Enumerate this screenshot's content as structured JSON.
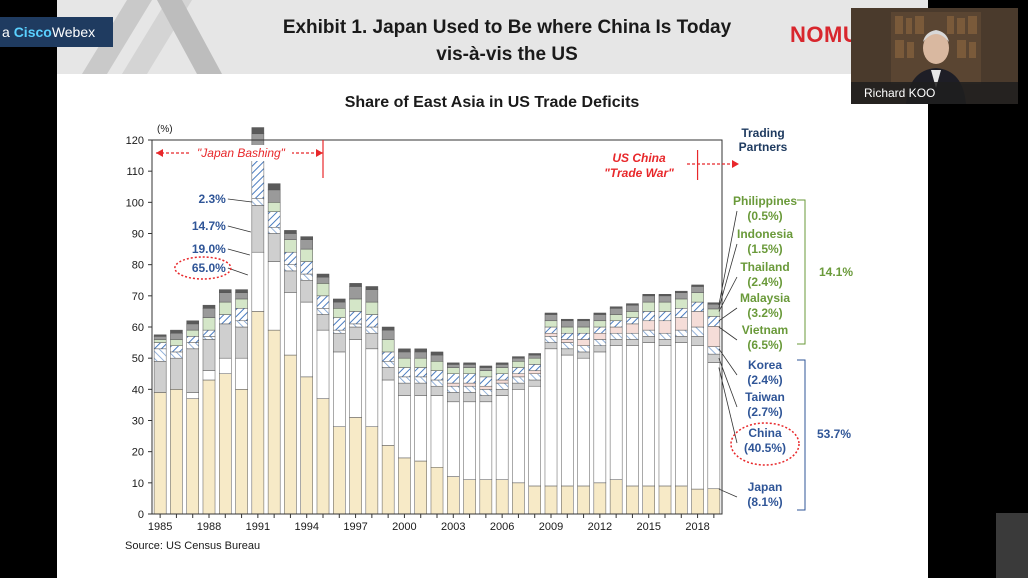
{
  "webex": {
    "prefix": "a ",
    "cisco": "Cisco",
    "webex": "Webex"
  },
  "slide": {
    "title_line1": "Exhibit 1. Japan Used to Be where China Is Today",
    "title_line2": "vis-à-vis the US",
    "brand": "NOMURA",
    "chart_title": "Share of East Asia in US Trade Deficits",
    "source": "Source: US Census Bureau"
  },
  "video": {
    "name": "Richard KOO"
  },
  "colors": {
    "japan": "#f7eac7",
    "china": "#ffffff",
    "taiwan": "#cfcfcf",
    "korea": "#a8a8a8",
    "vietnam": "#f5ddd8",
    "malaysia": "#4a7cc0",
    "thailand": "#d4e6c8",
    "indonesia": "#9a9a9a",
    "philippines": "#5a5a5a",
    "red": "#e8282b",
    "blue": "#2f5597",
    "green": "#6a9a3a"
  },
  "chart_data": {
    "type": "bar",
    "stacked": true,
    "ylabel": "(%)",
    "ylim": [
      0,
      120
    ],
    "yticks": [
      0,
      10,
      20,
      30,
      40,
      50,
      60,
      70,
      80,
      90,
      100,
      110,
      120
    ],
    "xtick_labels": [
      "1985",
      "1988",
      "1991",
      "1994",
      "1997",
      "2000",
      "2003",
      "2006",
      "2009",
      "2012",
      "2015",
      "2018"
    ],
    "x": [
      1985,
      1986,
      1987,
      1988,
      1989,
      1990,
      1991,
      1992,
      1993,
      1994,
      1995,
      1996,
      1997,
      1998,
      1999,
      2000,
      2001,
      2002,
      2003,
      2004,
      2005,
      2006,
      2007,
      2008,
      2009,
      2010,
      2011,
      2012,
      2013,
      2014,
      2015,
      2016,
      2017,
      2018,
      2019
    ],
    "series": [
      {
        "name": "Japan",
        "color": "#f7eac7",
        "values": [
          39,
          40,
          37,
          43,
          45,
          40,
          65,
          59,
          51,
          44,
          37,
          28,
          31,
          28,
          22,
          18,
          17,
          15,
          12,
          11,
          11,
          11,
          10,
          9,
          9,
          9,
          9,
          10,
          11,
          9,
          9,
          9,
          9,
          8,
          8.1
        ]
      },
      {
        "name": "China",
        "color": "#ffffff",
        "values": [
          0,
          0,
          2,
          3,
          5,
          10,
          19,
          22,
          20,
          24,
          22,
          24,
          25,
          25,
          21,
          20,
          21,
          23,
          24,
          25,
          25,
          27,
          30,
          32,
          44,
          42,
          41,
          42,
          43,
          45,
          46,
          45,
          46,
          46,
          40.5
        ]
      },
      {
        "name": "Taiwan",
        "color": "#cfcfcf",
        "values": [
          10,
          10,
          14,
          10,
          11,
          10,
          15,
          9,
          7,
          7,
          5,
          6,
          4,
          5,
          4,
          4,
          4,
          3,
          3,
          3,
          2,
          2,
          2,
          2,
          2,
          2,
          2,
          2,
          2,
          2,
          2,
          2,
          2,
          3,
          2.7
        ]
      },
      {
        "name": "Korea",
        "color": "#a8a8a8",
        "values": [
          4,
          2,
          2,
          1,
          0,
          2,
          2.3,
          2,
          2,
          2,
          2,
          1,
          1,
          2,
          2,
          2,
          2,
          2,
          2,
          2,
          2,
          2,
          2,
          2,
          2,
          2,
          2,
          2,
          2,
          2,
          2,
          2,
          2,
          3,
          2.4
        ]
      },
      {
        "name": "Vietnam",
        "color": "#f5ddd8",
        "values": [
          0,
          0,
          0,
          0,
          0,
          0,
          0,
          0,
          0,
          0,
          0,
          0,
          0,
          0,
          0,
          0,
          0,
          0,
          1,
          1,
          1,
          1,
          1,
          1,
          1,
          1,
          2,
          2,
          2,
          3,
          3,
          4,
          4,
          5,
          6.5
        ]
      },
      {
        "name": "Malaysia",
        "color": "#4a7cc0",
        "values": [
          2,
          2,
          2,
          2,
          3,
          4,
          14.7,
          5,
          4,
          4,
          4,
          4,
          4,
          4,
          3,
          3,
          3,
          3,
          3,
          3,
          3,
          2,
          2,
          2,
          2,
          2,
          2,
          2,
          2,
          2,
          3,
          3,
          3,
          3,
          3.2
        ]
      },
      {
        "name": "Thailand",
        "color": "#d4e6c8",
        "values": [
          1,
          2,
          2,
          4,
          4,
          3,
          2,
          3,
          4,
          4,
          4,
          3,
          4,
          4,
          4,
          3,
          3,
          3,
          2,
          2,
          2,
          2,
          2,
          2,
          2,
          2,
          2,
          2,
          2,
          2,
          3,
          3,
          3,
          3,
          2.4
        ]
      },
      {
        "name": "Indonesia",
        "color": "#9a9a9a",
        "values": [
          1,
          2,
          2,
          3,
          3,
          2,
          4,
          4,
          2,
          3,
          2,
          2,
          4,
          4,
          3,
          2,
          2,
          2,
          1,
          1,
          1,
          1,
          1,
          1,
          2,
          2,
          2,
          2,
          2,
          2,
          2,
          2,
          2,
          2,
          1.5
        ]
      },
      {
        "name": "Philippines",
        "color": "#5a5a5a",
        "values": [
          0.5,
          1,
          1,
          1,
          1,
          1,
          2,
          2,
          1,
          1,
          1,
          1,
          1,
          1,
          1,
          1,
          1,
          1,
          0.5,
          0.5,
          0.5,
          0.5,
          0.5,
          0.5,
          0.5,
          0.5,
          0.5,
          0.5,
          0.5,
          0.5,
          0.5,
          0.5,
          0.5,
          0.5,
          0.5
        ]
      }
    ],
    "annotations": {
      "japan_bashing": "\"Japan Bashing\"",
      "trade_war_line1": "US China",
      "trade_war_line2": "\"Trade War\"",
      "pct_1991": [
        "2.3%",
        "14.7%",
        "19.0%",
        "65.0%"
      ],
      "trading_partners_line1": "Trading",
      "trading_partners_line2": "Partners",
      "asean_total": "14.1%",
      "ne_asia_total": "53.7%",
      "legend_labels": [
        {
          "name": "Philippines",
          "pct": "(0.5%)",
          "color": "green"
        },
        {
          "name": "Indonesia",
          "pct": "(1.5%)",
          "color": "green"
        },
        {
          "name": "Thailand",
          "pct": "(2.4%)",
          "color": "green"
        },
        {
          "name": "Malaysia",
          "pct": "(3.2%)",
          "color": "green"
        },
        {
          "name": "Vietnam",
          "pct": "(6.5%)",
          "color": "green"
        },
        {
          "name": "Korea",
          "pct": "(2.4%)",
          "color": "blue"
        },
        {
          "name": "Taiwan",
          "pct": "(2.7%)",
          "color": "blue"
        },
        {
          "name": "China",
          "pct": "(40.5%)",
          "color": "blue"
        },
        {
          "name": "Japan",
          "pct": "(8.1%)",
          "color": "blue"
        }
      ]
    }
  }
}
